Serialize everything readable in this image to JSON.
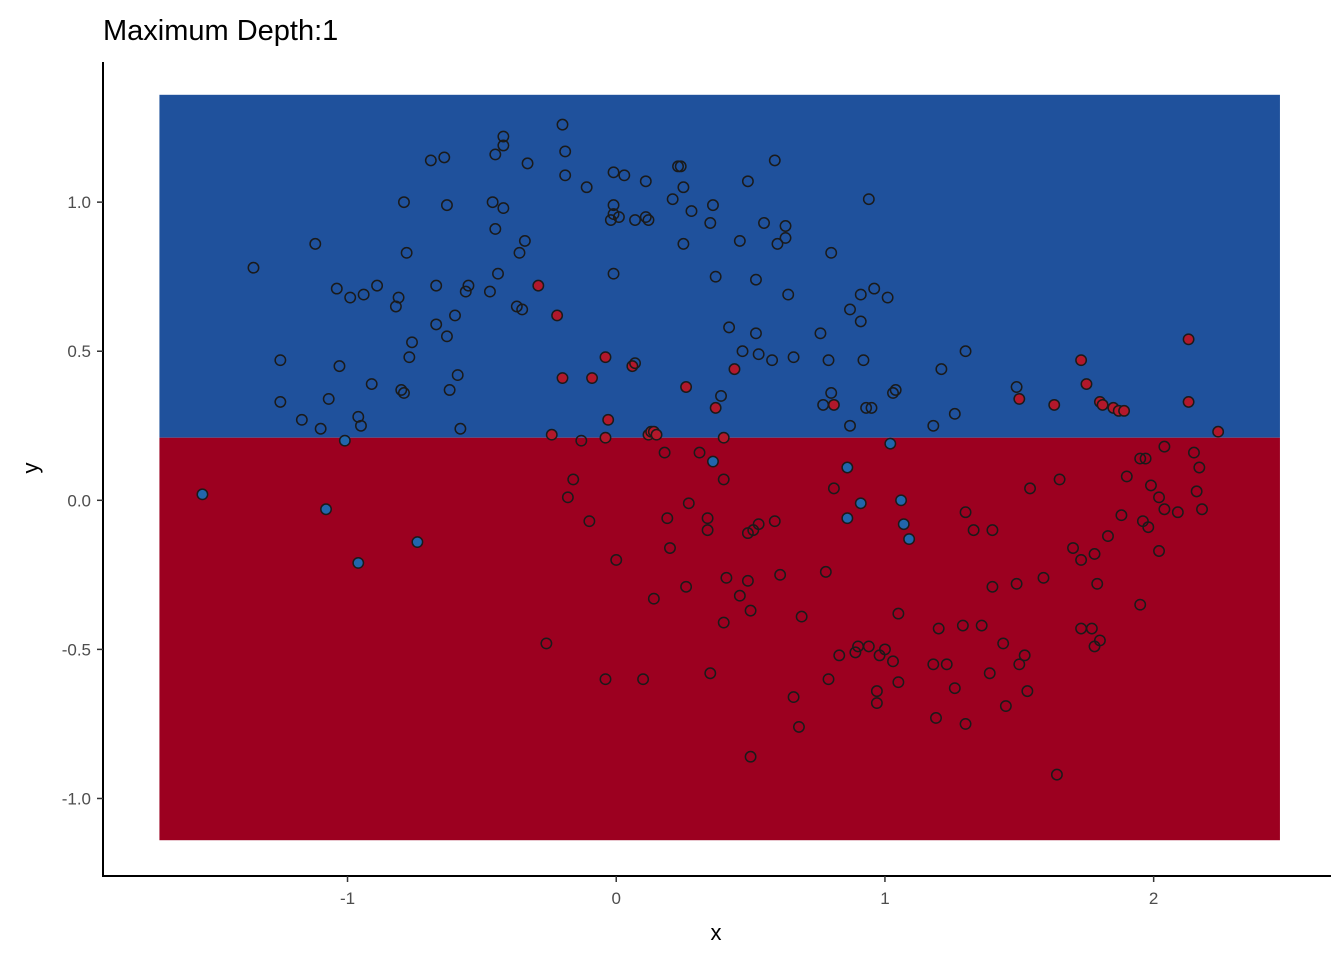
{
  "chart_data": {
    "type": "scatter",
    "title": "Maximum Depth:1",
    "xlabel": "x",
    "ylabel": "y",
    "xlim": [
      -1.91,
      2.66
    ],
    "ylim": [
      -1.26,
      1.47
    ],
    "x_ticks": [
      -1,
      0,
      1,
      2
    ],
    "y_ticks": [
      -1.0,
      -0.5,
      0.0,
      0.5,
      1.0
    ],
    "x_tick_labels": [
      "-1",
      "0",
      "1",
      "2"
    ],
    "y_tick_labels": [
      "-1.0",
      "-0.5",
      "0.0",
      "0.5",
      "1.0"
    ],
    "grid": false,
    "regions": [
      {
        "x": [
          -1.7,
          2.47
        ],
        "y": [
          0.21,
          1.36
        ],
        "predicted_class": 0
      },
      {
        "x": [
          -1.7,
          2.47
        ],
        "y": [
          -1.14,
          0.21
        ],
        "predicted_class": 1
      }
    ],
    "colors": {
      "class0": "#1f519c",
      "class1": "#9c0020",
      "point0": "#2166ac",
      "point1": "#b2182b",
      "outline": "#1a1a1a"
    },
    "points": [
      [
        -1.35,
        0.78,
        0
      ],
      [
        -1.25,
        0.47,
        0
      ],
      [
        -1.25,
        0.33,
        0
      ],
      [
        -1.12,
        0.86,
        0
      ],
      [
        -1.17,
        0.27,
        0
      ],
      [
        -1.1,
        0.24,
        0
      ],
      [
        -1.07,
        0.34,
        0
      ],
      [
        -1.04,
        0.71,
        0
      ],
      [
        -1.03,
        0.45,
        0
      ],
      [
        -1.01,
        0.2,
        0
      ],
      [
        -0.99,
        0.68,
        0
      ],
      [
        -0.96,
        0.28,
        0
      ],
      [
        -0.95,
        0.25,
        0
      ],
      [
        -0.94,
        0.69,
        0
      ],
      [
        -0.91,
        0.39,
        0
      ],
      [
        -0.89,
        0.72,
        0
      ],
      [
        -0.82,
        0.65,
        0
      ],
      [
        -0.81,
        0.68,
        0
      ],
      [
        -0.8,
        0.37,
        0
      ],
      [
        -0.79,
        0.36,
        0
      ],
      [
        -0.79,
        1.0,
        0
      ],
      [
        -0.78,
        0.83,
        0
      ],
      [
        -0.77,
        0.48,
        0
      ],
      [
        -0.76,
        0.53,
        0
      ],
      [
        -0.69,
        1.14,
        0
      ],
      [
        -0.67,
        0.72,
        0
      ],
      [
        -0.67,
        0.59,
        0
      ],
      [
        -0.64,
        1.15,
        0
      ],
      [
        -0.63,
        0.99,
        0
      ],
      [
        -0.63,
        0.55,
        0
      ],
      [
        -0.62,
        0.37,
        0
      ],
      [
        -0.6,
        0.62,
        0
      ],
      [
        -0.59,
        0.42,
        0
      ],
      [
        -0.58,
        0.24,
        0
      ],
      [
        -0.56,
        0.7,
        0
      ],
      [
        -0.55,
        0.72,
        0
      ],
      [
        -0.47,
        0.7,
        0
      ],
      [
        -0.46,
        1.0,
        0
      ],
      [
        -0.45,
        0.91,
        0
      ],
      [
        -0.45,
        1.16,
        0
      ],
      [
        -0.44,
        0.76,
        0
      ],
      [
        -0.42,
        0.98,
        0
      ],
      [
        -0.42,
        1.19,
        0
      ],
      [
        -0.42,
        1.22,
        0
      ],
      [
        -0.37,
        0.65,
        0
      ],
      [
        -0.36,
        0.83,
        0
      ],
      [
        -0.35,
        0.64,
        0
      ],
      [
        -0.34,
        0.87,
        0
      ],
      [
        -0.33,
        1.13,
        0
      ],
      [
        -0.29,
        0.72,
        1
      ],
      [
        -0.26,
        -0.48,
        1
      ],
      [
        -0.24,
        0.22,
        1
      ],
      [
        -0.22,
        0.62,
        1
      ],
      [
        -0.2,
        1.26,
        0
      ],
      [
        -0.2,
        0.41,
        1
      ],
      [
        -0.19,
        1.17,
        0
      ],
      [
        -0.19,
        1.09,
        0
      ],
      [
        -0.18,
        0.01,
        1
      ],
      [
        -0.16,
        0.07,
        1
      ],
      [
        -0.13,
        0.2,
        1
      ],
      [
        -0.11,
        1.05,
        0
      ],
      [
        -0.1,
        -0.07,
        1
      ],
      [
        -0.09,
        0.41,
        1
      ],
      [
        -0.04,
        0.21,
        1
      ],
      [
        -0.04,
        0.48,
        1
      ],
      [
        -0.04,
        -0.6,
        1
      ],
      [
        -0.03,
        0.27,
        1
      ],
      [
        -0.02,
        0.94,
        0
      ],
      [
        -0.01,
        0.96,
        0
      ],
      [
        -0.01,
        0.99,
        0
      ],
      [
        -0.01,
        1.1,
        0
      ],
      [
        -0.01,
        0.76,
        0
      ],
      [
        0.0,
        -0.2,
        1
      ],
      [
        0.01,
        0.95,
        0
      ],
      [
        0.03,
        1.09,
        0
      ],
      [
        0.06,
        0.45,
        1
      ],
      [
        0.07,
        0.46,
        0
      ],
      [
        0.07,
        0.94,
        0
      ],
      [
        0.1,
        -0.6,
        1
      ],
      [
        0.11,
        1.07,
        0
      ],
      [
        0.11,
        0.95,
        0
      ],
      [
        0.12,
        0.22,
        1
      ],
      [
        0.12,
        0.94,
        0
      ],
      [
        0.13,
        0.23,
        1
      ],
      [
        0.14,
        -0.33,
        1
      ],
      [
        0.14,
        0.23,
        1
      ],
      [
        0.15,
        0.22,
        1
      ],
      [
        0.18,
        0.16,
        1
      ],
      [
        0.19,
        -0.06,
        1
      ],
      [
        0.2,
        -0.16,
        1
      ],
      [
        0.21,
        1.01,
        0
      ],
      [
        0.23,
        1.12,
        0
      ],
      [
        0.24,
        1.12,
        0
      ],
      [
        0.25,
        1.05,
        0
      ],
      [
        0.25,
        0.86,
        0
      ],
      [
        0.26,
        0.38,
        1
      ],
      [
        0.26,
        -0.29,
        1
      ],
      [
        0.27,
        -0.01,
        1
      ],
      [
        0.28,
        0.97,
        0
      ],
      [
        0.31,
        0.16,
        1
      ],
      [
        0.34,
        -0.1,
        1
      ],
      [
        0.34,
        -0.06,
        1
      ],
      [
        0.35,
        0.93,
        0
      ],
      [
        0.35,
        -0.58,
        1
      ],
      [
        0.36,
        0.13,
        0
      ],
      [
        0.36,
        0.99,
        0
      ],
      [
        0.37,
        0.31,
        1
      ],
      [
        0.37,
        0.75,
        0
      ],
      [
        0.39,
        0.35,
        0
      ],
      [
        0.4,
        0.21,
        1
      ],
      [
        0.4,
        -0.41,
        1
      ],
      [
        0.4,
        0.07,
        1
      ],
      [
        0.41,
        -0.26,
        1
      ],
      [
        0.42,
        0.58,
        0
      ],
      [
        0.44,
        0.44,
        1
      ],
      [
        0.46,
        -0.32,
        1
      ],
      [
        0.46,
        0.87,
        0
      ],
      [
        0.47,
        0.5,
        0
      ],
      [
        0.49,
        -0.11,
        1
      ],
      [
        0.49,
        1.07,
        0
      ],
      [
        0.49,
        -0.27,
        1
      ],
      [
        0.5,
        -0.37,
        1
      ],
      [
        0.5,
        -0.86,
        1
      ],
      [
        0.51,
        -0.1,
        1
      ],
      [
        0.52,
        0.74,
        0
      ],
      [
        0.52,
        0.56,
        0
      ],
      [
        0.53,
        0.49,
        0
      ],
      [
        0.53,
        -0.08,
        1
      ],
      [
        0.55,
        0.93,
        0
      ],
      [
        0.58,
        0.47,
        0
      ],
      [
        0.59,
        -0.07,
        1
      ],
      [
        0.59,
        1.14,
        0
      ],
      [
        0.6,
        0.86,
        0
      ],
      [
        0.61,
        -0.25,
        1
      ],
      [
        0.63,
        0.88,
        0
      ],
      [
        0.63,
        0.92,
        0
      ],
      [
        0.64,
        0.69,
        0
      ],
      [
        0.66,
        0.48,
        0
      ],
      [
        0.66,
        -0.66,
        1
      ],
      [
        0.68,
        -0.76,
        1
      ],
      [
        0.69,
        -0.39,
        1
      ],
      [
        0.76,
        0.56,
        0
      ],
      [
        0.77,
        0.32,
        0
      ],
      [
        0.78,
        -0.24,
        1
      ],
      [
        0.79,
        0.47,
        0
      ],
      [
        0.79,
        -0.6,
        1
      ],
      [
        0.8,
        0.83,
        0
      ],
      [
        0.8,
        0.36,
        0
      ],
      [
        0.81,
        0.32,
        1
      ],
      [
        0.81,
        0.04,
        1
      ],
      [
        0.83,
        -0.52,
        1
      ],
      [
        0.86,
        -0.06,
        0
      ],
      [
        0.86,
        0.11,
        0
      ],
      [
        0.87,
        0.25,
        0
      ],
      [
        0.87,
        0.64,
        0
      ],
      [
        0.89,
        -0.51,
        1
      ],
      [
        0.9,
        -0.49,
        1
      ],
      [
        0.91,
        0.6,
        0
      ],
      [
        0.91,
        0.69,
        0
      ],
      [
        0.91,
        -0.01,
        0
      ],
      [
        0.92,
        0.47,
        0
      ],
      [
        0.93,
        0.31,
        0
      ],
      [
        0.94,
        -0.49,
        1
      ],
      [
        0.94,
        1.01,
        0
      ],
      [
        0.95,
        0.31,
        0
      ],
      [
        0.96,
        0.71,
        0
      ],
      [
        0.97,
        -0.64,
        1
      ],
      [
        0.97,
        -0.68,
        1
      ],
      [
        0.98,
        -0.52,
        1
      ],
      [
        1.0,
        -0.5,
        1
      ],
      [
        1.01,
        0.68,
        0
      ],
      [
        1.02,
        0.19,
        0
      ],
      [
        1.03,
        -0.54,
        1
      ],
      [
        1.03,
        0.36,
        0
      ],
      [
        1.04,
        0.37,
        0
      ],
      [
        1.05,
        -0.61,
        1
      ],
      [
        1.05,
        -0.38,
        1
      ],
      [
        1.06,
        0.0,
        0
      ],
      [
        1.07,
        -0.08,
        0
      ],
      [
        1.09,
        -0.13,
        0
      ],
      [
        1.18,
        0.25,
        0
      ],
      [
        1.18,
        -0.55,
        1
      ],
      [
        1.19,
        -0.73,
        1
      ],
      [
        1.2,
        -0.43,
        1
      ],
      [
        1.21,
        0.44,
        0
      ],
      [
        1.23,
        -0.55,
        1
      ],
      [
        1.26,
        -0.63,
        1
      ],
      [
        1.26,
        0.29,
        0
      ],
      [
        1.29,
        -0.42,
        1
      ],
      [
        1.3,
        0.5,
        0
      ],
      [
        1.3,
        -0.04,
        1
      ],
      [
        1.3,
        -0.75,
        1
      ],
      [
        1.33,
        -0.1,
        1
      ],
      [
        1.36,
        -0.42,
        1
      ],
      [
        1.39,
        -0.58,
        1
      ],
      [
        1.4,
        -0.29,
        1
      ],
      [
        1.4,
        -0.1,
        1
      ],
      [
        1.44,
        -0.48,
        1
      ],
      [
        1.45,
        -0.69,
        1
      ],
      [
        1.49,
        0.38,
        0
      ],
      [
        1.49,
        -0.28,
        1
      ],
      [
        1.5,
        0.34,
        1
      ],
      [
        1.5,
        -0.55,
        1
      ],
      [
        1.52,
        -0.52,
        1
      ],
      [
        1.53,
        -0.64,
        1
      ],
      [
        1.54,
        0.04,
        1
      ],
      [
        1.59,
        -0.26,
        1
      ],
      [
        1.63,
        0.32,
        1
      ],
      [
        1.64,
        -0.92,
        1
      ],
      [
        1.65,
        0.07,
        1
      ],
      [
        1.7,
        -0.16,
        1
      ],
      [
        1.73,
        0.47,
        1
      ],
      [
        1.73,
        -0.2,
        1
      ],
      [
        1.73,
        -0.43,
        1
      ],
      [
        1.75,
        0.39,
        1
      ],
      [
        1.77,
        -0.43,
        1
      ],
      [
        1.78,
        -0.18,
        1
      ],
      [
        1.78,
        -0.49,
        1
      ],
      [
        1.79,
        -0.28,
        1
      ],
      [
        1.8,
        -0.47,
        1
      ],
      [
        1.8,
        0.33,
        1
      ],
      [
        1.81,
        0.32,
        1
      ],
      [
        1.83,
        -0.12,
        1
      ],
      [
        1.85,
        0.31,
        1
      ],
      [
        1.87,
        0.3,
        1
      ],
      [
        1.88,
        -0.05,
        1
      ],
      [
        1.89,
        0.3,
        1
      ],
      [
        1.9,
        0.08,
        1
      ],
      [
        1.95,
        -0.35,
        1
      ],
      [
        1.95,
        0.14,
        1
      ],
      [
        1.96,
        -0.07,
        1
      ],
      [
        1.97,
        0.14,
        1
      ],
      [
        1.98,
        -0.09,
        1
      ],
      [
        1.99,
        0.05,
        1
      ],
      [
        2.02,
        -0.17,
        1
      ],
      [
        2.02,
        0.01,
        1
      ],
      [
        2.04,
        0.18,
        1
      ],
      [
        2.04,
        -0.03,
        1
      ],
      [
        2.09,
        -0.04,
        1
      ],
      [
        2.13,
        0.54,
        1
      ],
      [
        2.13,
        0.33,
        1
      ],
      [
        2.15,
        0.16,
        1
      ],
      [
        2.16,
        0.03,
        1
      ],
      [
        2.17,
        0.11,
        1
      ],
      [
        2.18,
        -0.03,
        1
      ],
      [
        2.24,
        0.23,
        1
      ],
      [
        -1.54,
        0.02,
        0
      ],
      [
        -1.08,
        -0.03,
        0
      ],
      [
        -0.96,
        -0.21,
        0
      ],
      [
        -0.74,
        -0.14,
        0
      ]
    ]
  }
}
